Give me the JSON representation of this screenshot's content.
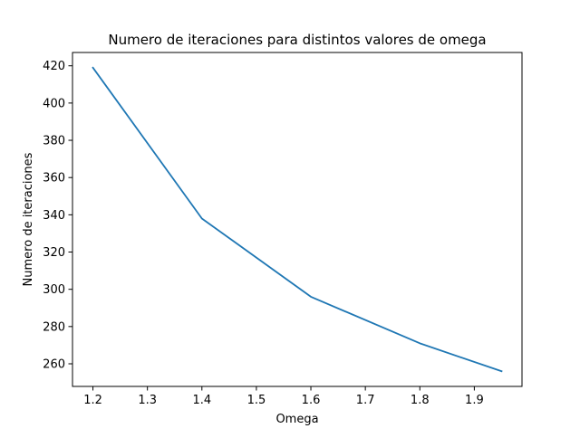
{
  "chart_data": {
    "type": "line",
    "title": "Numero de iteraciones para distintos valores de omega",
    "xlabel": "Omega",
    "ylabel": "Numero de iteraciones",
    "x": [
      1.2,
      1.4,
      1.6,
      1.8,
      1.95
    ],
    "series": [
      {
        "values": [
          419,
          338,
          296,
          271,
          256
        ]
      }
    ],
    "xlim": [
      1.1625,
      1.9875
    ],
    "ylim": [
      247.85,
      427.15
    ],
    "xticks": [
      1.2,
      1.3,
      1.4,
      1.5,
      1.6,
      1.7,
      1.8,
      1.9
    ],
    "xtick_labels": [
      "1.2",
      "1.3",
      "1.4",
      "1.5",
      "1.6",
      "1.7",
      "1.8",
      "1.9"
    ],
    "yticks": [
      260,
      280,
      300,
      320,
      340,
      360,
      380,
      400,
      420
    ],
    "ytick_labels": [
      "260",
      "280",
      "300",
      "320",
      "340",
      "360",
      "380",
      "400",
      "420"
    ],
    "grid": false,
    "line_color": "#1f77b4"
  }
}
